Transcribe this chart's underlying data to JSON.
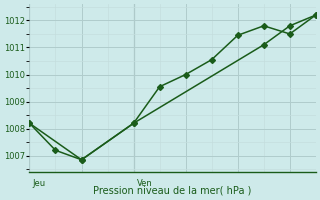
{
  "background_color": "#ceeaea",
  "grid_color_major": "#b0cccc",
  "grid_color_minor": "#c4dede",
  "line_color": "#1a5c1a",
  "ylabel": "Pression niveau de la mer( hPa )",
  "ylim": [
    1006.4,
    1012.6
  ],
  "yticks": [
    1007,
    1008,
    1009,
    1010,
    1011,
    1012
  ],
  "xlim": [
    0,
    11
  ],
  "x_jeu": 0,
  "x_ven": 4,
  "line1_x": [
    0,
    1,
    2,
    4,
    5,
    6,
    7,
    8,
    9,
    10,
    11
  ],
  "line1_y": [
    1008.2,
    1007.2,
    1006.85,
    1008.2,
    1009.55,
    1010.0,
    1010.55,
    1011.45,
    1011.8,
    1011.5,
    1012.2
  ],
  "line2_x": [
    0,
    2,
    4,
    9,
    10,
    11
  ],
  "line2_y": [
    1008.2,
    1006.85,
    1008.2,
    1011.1,
    1011.8,
    1012.2
  ],
  "marker_size": 3.0,
  "line_width": 1.1,
  "fontsize_tick": 6,
  "fontsize_label": 7
}
